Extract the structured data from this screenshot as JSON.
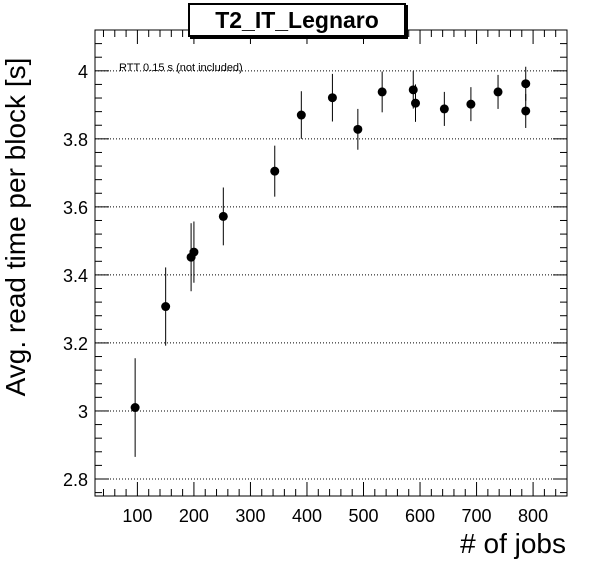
{
  "chart_data": {
    "type": "scatter",
    "title": "T2_IT_Legnaro",
    "xlabel": "# of jobs",
    "ylabel": "Avg. read time per block [s]",
    "annotation": "RTT 0.15 s (not included)",
    "xlim": [
      25,
      860
    ],
    "ylim": [
      2.75,
      4.12
    ],
    "xticks": [
      100,
      200,
      300,
      400,
      500,
      600,
      700,
      800
    ],
    "yticks": [
      2.8,
      3,
      3.2,
      3.4,
      3.6,
      3.8,
      4
    ],
    "ytick_labels": [
      "2.8",
      "3",
      "3.2",
      "3.4",
      "3.6",
      "3.8",
      "4"
    ],
    "grid": "y-dotted",
    "series": [
      {
        "marker_color": "#000000",
        "points": [
          {
            "x": 96,
            "y": 3.01,
            "err": 0.145
          },
          {
            "x": 150,
            "y": 3.307,
            "err": 0.115
          },
          {
            "x": 195,
            "y": 3.452,
            "err": 0.1
          },
          {
            "x": 200,
            "y": 3.467,
            "err": 0.09
          },
          {
            "x": 252,
            "y": 3.572,
            "err": 0.085
          },
          {
            "x": 343,
            "y": 3.705,
            "err": 0.075
          },
          {
            "x": 390,
            "y": 3.87,
            "err": 0.07
          },
          {
            "x": 445,
            "y": 3.921,
            "err": 0.07
          },
          {
            "x": 490,
            "y": 3.828,
            "err": 0.06
          },
          {
            "x": 533,
            "y": 3.938,
            "err": 0.06
          },
          {
            "x": 588,
            "y": 3.944,
            "err": 0.055
          },
          {
            "x": 592,
            "y": 3.905,
            "err": 0.055
          },
          {
            "x": 643,
            "y": 3.888,
            "err": 0.05
          },
          {
            "x": 690,
            "y": 3.902,
            "err": 0.05
          },
          {
            "x": 738,
            "y": 3.938,
            "err": 0.05
          },
          {
            "x": 787,
            "y": 3.962,
            "err": 0.05
          },
          {
            "x": 787,
            "y": 3.882,
            "err": 0.05
          }
        ]
      }
    ]
  }
}
